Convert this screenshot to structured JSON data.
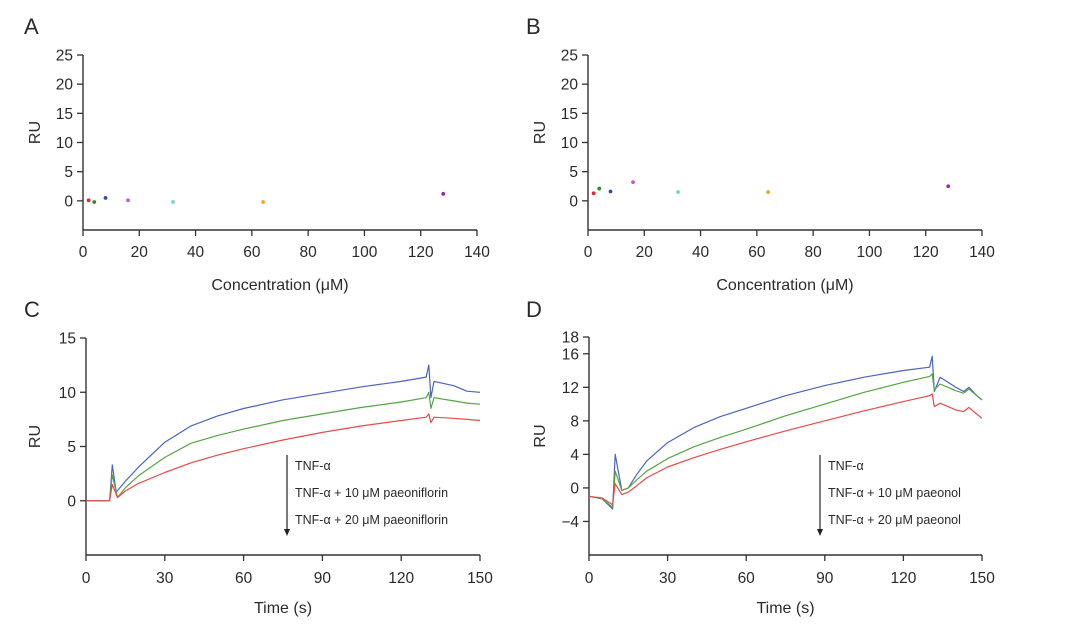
{
  "chart_data": [
    {
      "panel": "A",
      "type": "scatter",
      "title": "",
      "xlabel": "Concentration (μM)",
      "ylabel": "RU",
      "xlim": [
        0,
        140
      ],
      "ylim": [
        -5,
        25
      ],
      "xticks": [
        0,
        20,
        40,
        60,
        80,
        100,
        120,
        140
      ],
      "yticks": [
        0,
        5,
        10,
        15,
        20,
        25
      ],
      "grid": false,
      "points": [
        {
          "x": 2,
          "y": 0.1,
          "color": "#e8232a"
        },
        {
          "x": 4,
          "y": -0.2,
          "color": "#2e8b2e"
        },
        {
          "x": 8,
          "y": 0.5,
          "color": "#2f4fb0"
        },
        {
          "x": 16,
          "y": 0.1,
          "color": "#c857c8"
        },
        {
          "x": 32,
          "y": -0.2,
          "color": "#6fd6d0"
        },
        {
          "x": 64,
          "y": -0.2,
          "color": "#f0a820"
        },
        {
          "x": 128,
          "y": 1.2,
          "color": "#9a2a9a"
        }
      ]
    },
    {
      "panel": "B",
      "type": "scatter",
      "title": "",
      "xlabel": "Concentration (μM)",
      "ylabel": "RU",
      "xlim": [
        0,
        140
      ],
      "ylim": [
        -5,
        25
      ],
      "xticks": [
        0,
        20,
        40,
        60,
        80,
        100,
        120,
        140
      ],
      "yticks": [
        0,
        5,
        10,
        15,
        20,
        25
      ],
      "grid": false,
      "points": [
        {
          "x": 2,
          "y": 1.3,
          "color": "#e8232a"
        },
        {
          "x": 4,
          "y": 2.1,
          "color": "#2e8b2e"
        },
        {
          "x": 8,
          "y": 1.6,
          "color": "#2f4fb0"
        },
        {
          "x": 16,
          "y": 3.2,
          "color": "#c857c8"
        },
        {
          "x": 32,
          "y": 1.5,
          "color": "#6fd6d0"
        },
        {
          "x": 64,
          "y": 1.5,
          "color": "#f0a820"
        },
        {
          "x": 128,
          "y": 2.5,
          "color": "#9a2a9a"
        }
      ]
    },
    {
      "panel": "C",
      "type": "line",
      "title": "",
      "xlabel": "Time (s)",
      "ylabel": "RU",
      "xlim": [
        0,
        150
      ],
      "ylim": [
        -5,
        15
      ],
      "xticks": [
        0,
        30,
        60,
        90,
        120,
        150
      ],
      "yticks": [
        0,
        5,
        10,
        15
      ],
      "grid": false,
      "legend": {
        "placement": "center-right, with downward arrow",
        "entries": [
          "TNF-α",
          "TNF-α + 10 μM paeoniflorin",
          "TNF-α + 20 μM paeoniflorin"
        ]
      },
      "series": [
        {
          "name": "TNF-α",
          "color": "#4a64c0",
          "x": [
            0,
            9,
            10,
            11.5,
            15,
            20,
            30,
            40,
            50,
            60,
            75,
            90,
            105,
            120,
            129.5,
            130.5,
            131.3,
            132.5,
            140,
            145,
            150
          ],
          "y": [
            0,
            0,
            3.3,
            0.8,
            1.8,
            3.1,
            5.4,
            6.9,
            7.8,
            8.5,
            9.3,
            9.9,
            10.5,
            11.0,
            11.4,
            12.5,
            9.5,
            11.0,
            10.6,
            10.1,
            10.0
          ]
        },
        {
          "name": "TNF-α + 10 μM paeoniflorin",
          "color": "#55a444",
          "x": [
            0,
            9,
            10,
            12,
            15,
            20,
            30,
            40,
            50,
            60,
            75,
            90,
            105,
            120,
            129.5,
            130.5,
            131.3,
            132.5,
            140,
            145,
            150
          ],
          "y": [
            0,
            0,
            2.4,
            0.3,
            1.2,
            2.3,
            4.0,
            5.3,
            6.0,
            6.6,
            7.4,
            8.0,
            8.6,
            9.1,
            9.5,
            10.0,
            8.5,
            9.5,
            9.2,
            9.0,
            8.9
          ]
        },
        {
          "name": "TNF-α + 20 μM paeoniflorin",
          "color": "#e84a4a",
          "x": [
            0,
            9,
            10,
            12,
            15,
            20,
            30,
            40,
            50,
            60,
            75,
            90,
            105,
            120,
            129.5,
            130.5,
            131.3,
            132.5,
            140,
            145,
            150
          ],
          "y": [
            0,
            0,
            1.5,
            0.3,
            0.9,
            1.6,
            2.6,
            3.5,
            4.2,
            4.8,
            5.6,
            6.3,
            6.9,
            7.4,
            7.7,
            8.0,
            7.2,
            7.7,
            7.6,
            7.5,
            7.4
          ]
        }
      ]
    },
    {
      "panel": "D",
      "type": "line",
      "title": "",
      "xlabel": "Time (s)",
      "ylabel": "RU",
      "xlim": [
        0,
        150
      ],
      "ylim": [
        -8,
        18
      ],
      "xticks": [
        0,
        30,
        60,
        90,
        120,
        150
      ],
      "yticks": [
        -4,
        0,
        4,
        8,
        12,
        16,
        18
      ],
      "grid": false,
      "legend": {
        "placement": "center-right, with downward arrow",
        "entries": [
          "TNF-α",
          "TNF-α + 10 μM paeonol",
          "TNF-α + 20 μM paeonol"
        ]
      },
      "series": [
        {
          "name": "TNF-α",
          "color": "#4a64c0",
          "x": [
            0,
            5,
            9,
            10,
            12.5,
            15,
            18,
            22,
            30,
            40,
            50,
            60,
            75,
            90,
            105,
            120,
            130,
            131,
            131.8,
            134,
            140,
            143,
            145,
            148,
            150
          ],
          "y": [
            -1,
            -1.3,
            -2.5,
            4.0,
            -0.3,
            0,
            1.5,
            3.2,
            5.4,
            7.2,
            8.5,
            9.5,
            11.0,
            12.2,
            13.2,
            14.0,
            14.4,
            15.7,
            11.5,
            13.2,
            12.0,
            11.5,
            12.0,
            11.0,
            10.5
          ]
        },
        {
          "name": "TNF-α + 10 μM paeonol",
          "color": "#55a444",
          "x": [
            0,
            5,
            9,
            10,
            12.5,
            15,
            18,
            22,
            30,
            40,
            50,
            60,
            75,
            90,
            105,
            120,
            130,
            131,
            131.8,
            134,
            140,
            143,
            145,
            148,
            150
          ],
          "y": [
            -1,
            -1.3,
            -2.3,
            2.0,
            -0.3,
            0,
            0.9,
            2.0,
            3.5,
            4.9,
            6.0,
            7.0,
            8.6,
            10.0,
            11.4,
            12.6,
            13.3,
            13.6,
            11.7,
            12.4,
            11.6,
            11.3,
            11.8,
            11.0,
            10.5
          ]
        },
        {
          "name": "TNF-α + 20 μM paeonol",
          "color": "#e84a4a",
          "x": [
            0,
            5,
            9,
            10,
            12.5,
            15,
            18,
            22,
            30,
            40,
            50,
            60,
            75,
            90,
            105,
            120,
            130,
            131,
            131.8,
            134,
            140,
            143,
            145,
            148,
            150
          ],
          "y": [
            -1,
            -1.2,
            -2.0,
            0.5,
            -0.8,
            -0.5,
            0.2,
            1.2,
            2.5,
            3.6,
            4.6,
            5.5,
            6.8,
            8.0,
            9.2,
            10.3,
            11.0,
            11.2,
            9.7,
            10.1,
            9.3,
            9.1,
            9.6,
            8.8,
            8.3
          ]
        }
      ]
    }
  ]
}
